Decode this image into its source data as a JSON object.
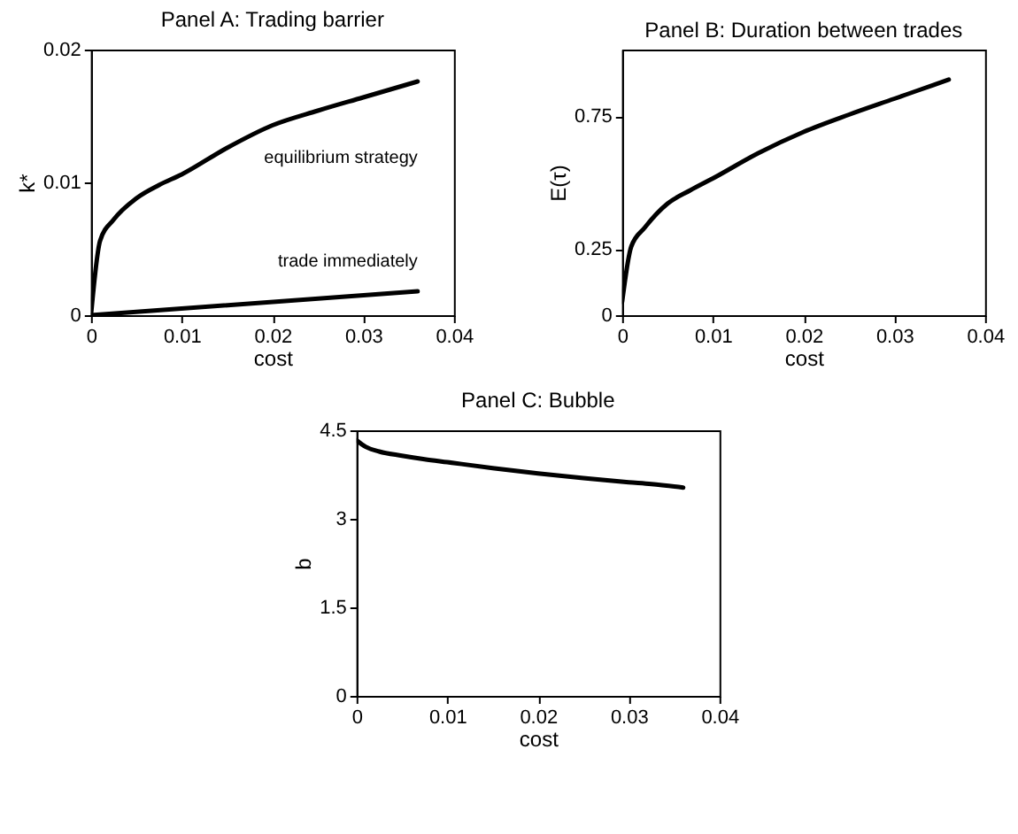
{
  "chart_data": [
    {
      "type": "line",
      "title": "Panel A: Trading barrier",
      "xlabel": "cost",
      "ylabel": "k*",
      "xlim": [
        0,
        0.04
      ],
      "xticks": [
        0,
        0.01,
        0.02,
        0.03,
        0.04
      ],
      "ylim": [
        0,
        0.02
      ],
      "yticks": [
        0,
        0.01,
        0.02
      ],
      "x": [
        0,
        0.001,
        0.0025,
        0.005,
        0.0075,
        0.01,
        0.015,
        0.02,
        0.025,
        0.03,
        0.0325,
        0.036
      ],
      "series": [
        {
          "name": "equilibrium strategy",
          "color": "#000000",
          "values": [
            0,
            0.0056,
            0.0072,
            0.0088,
            0.0098,
            0.0106,
            0.0126,
            0.0143,
            0.0154,
            0.0164,
            0.0169,
            0.0176
          ]
        },
        {
          "name": "trade immediately",
          "color": "#000000",
          "x": [
            0,
            0.036
          ],
          "values": [
            0,
            0.0018
          ]
        }
      ]
    },
    {
      "type": "line",
      "title": "Panel B: Duration  between trades",
      "xlabel": "cost",
      "ylabel": "E(τ)",
      "xlim": [
        0,
        0.04
      ],
      "xticks": [
        0,
        0.01,
        0.02,
        0.03,
        0.04
      ],
      "ylim": [
        0,
        1
      ],
      "yticks": [
        0,
        0.25,
        0.75
      ],
      "x": [
        0,
        0.001,
        0.0025,
        0.005,
        0.0075,
        0.01,
        0.015,
        0.02,
        0.025,
        0.03,
        0.0325,
        0.036
      ],
      "series": [
        {
          "color": "#000000",
          "values": [
            0.05,
            0.258,
            0.33,
            0.42,
            0.47,
            0.515,
            0.61,
            0.69,
            0.755,
            0.815,
            0.845,
            0.887
          ]
        }
      ]
    },
    {
      "type": "line",
      "title": "Panel C: Bubble",
      "xlabel": "cost",
      "ylabel": "b",
      "xlim": [
        0,
        0.04
      ],
      "xticks": [
        0,
        0.01,
        0.02,
        0.03,
        0.04
      ],
      "ylim": [
        0,
        4.5
      ],
      "yticks": [
        0,
        1.5,
        3,
        4.5
      ],
      "x": [
        0,
        0.001,
        0.0025,
        0.005,
        0.0075,
        0.01,
        0.015,
        0.02,
        0.025,
        0.03,
        0.0325,
        0.036
      ],
      "series": [
        {
          "color": "#000000",
          "values": [
            4.33,
            4.22,
            4.14,
            4.07,
            4.01,
            3.96,
            3.86,
            3.77,
            3.69,
            3.62,
            3.59,
            3.53
          ]
        }
      ]
    }
  ]
}
